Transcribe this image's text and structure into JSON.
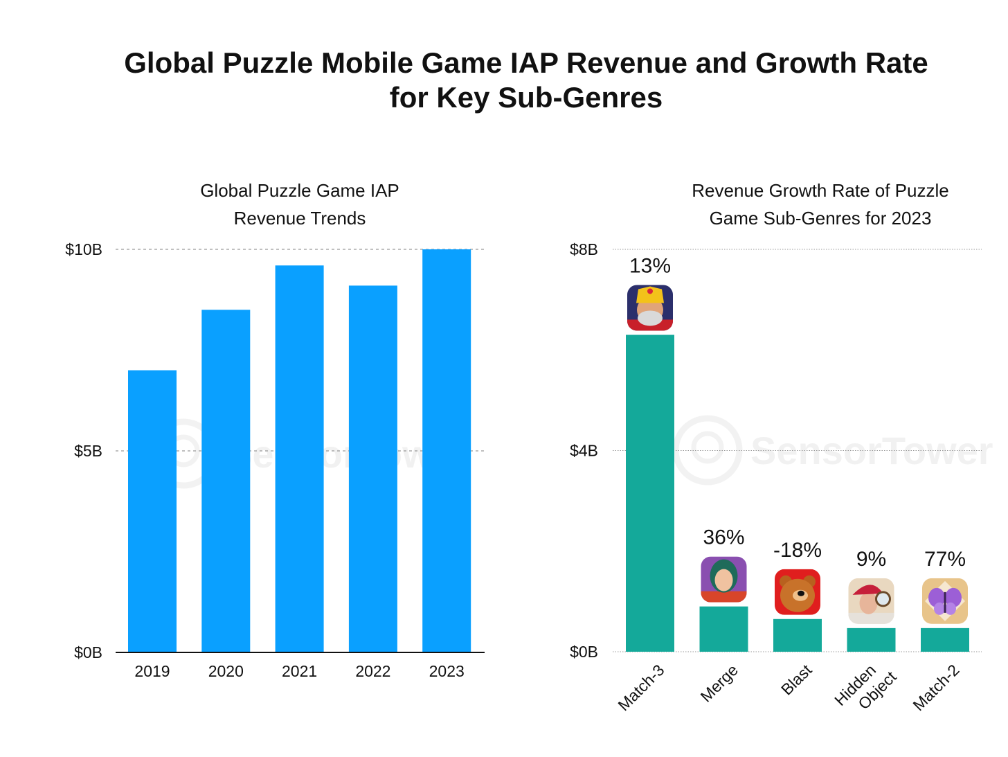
{
  "title_line1": "Global Puzzle Mobile Game IAP Revenue and Growth Rate",
  "title_line2": "for Key Sub-Genres",
  "watermark": "SensorTower",
  "chart_data": [
    {
      "type": "bar",
      "title_line1": "Global Puzzle Game IAP",
      "title_line2": "Revenue Trends",
      "categories": [
        "2019",
        "2020",
        "2021",
        "2022",
        "2023"
      ],
      "values": [
        7.0,
        8.5,
        9.6,
        9.1,
        10.0
      ],
      "unit": "USD billions",
      "ylim": [
        0,
        10
      ],
      "yticks": [
        0,
        5,
        10
      ],
      "ytick_labels": [
        "$0B",
        "$5B",
        "$10B"
      ],
      "grid": "dashed",
      "color": "#0aa0ff",
      "xlabel": "",
      "ylabel": ""
    },
    {
      "type": "bar",
      "title_line1": "Revenue Growth Rate of Puzzle",
      "title_line2": "Game Sub-Genres for 2023",
      "categories": [
        "Match-3",
        "Merge",
        "Blast",
        "Hidden Object",
        "Match-2"
      ],
      "category_lines": [
        [
          "Match-3"
        ],
        [
          "Merge"
        ],
        [
          "Blast"
        ],
        [
          "Hidden",
          "Object"
        ],
        [
          "Match-2"
        ]
      ],
      "values": [
        6.3,
        0.9,
        0.65,
        0.47,
        0.47
      ],
      "growth_labels": [
        "13%",
        "36%",
        "-18%",
        "9%",
        "77%"
      ],
      "growth_rates": [
        13,
        36,
        -18,
        9,
        77
      ],
      "icons": [
        "king-character-app-icon",
        "woman-character-app-icon",
        "bear-app-icon",
        "detective-woman-app-icon",
        "butterfly-app-icon"
      ],
      "unit": "USD billions",
      "ylim": [
        0,
        8
      ],
      "yticks": [
        0,
        4,
        8
      ],
      "ytick_labels": [
        "$0B",
        "$4B",
        "$8B"
      ],
      "grid": "dotted",
      "color": "#14a99a",
      "xlabel": "",
      "ylabel": ""
    }
  ]
}
